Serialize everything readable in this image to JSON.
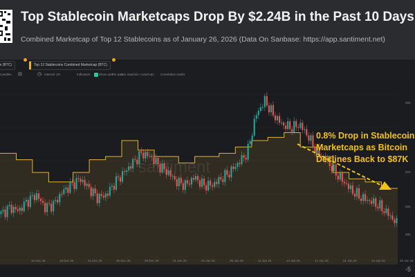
{
  "header": {
    "title": "Top Stablecoin Marketcaps Drop By $2.24B in the Past 10 Days",
    "subtitle": "Combined Marketcap of Top 12 Stablecoins as of January 26, 2026 (Data On Sanbase: https://app.santiment.net)"
  },
  "toolbar": {
    "tab_btc": "ce (BTC)",
    "tab_stablecoins": "Top 12 Stablecoins Combined Marketcap (BTC)",
    "candles": "Candles",
    "interval": "Interval: 2H",
    "indicators": "Indicators",
    "show_axis": "Show axis",
    "pin_axis": "Pin axis",
    "axis_max_min": "Axis max/min: Auto/Auto",
    "correlation": "Correlation matrix"
  },
  "chart": {
    "watermark": "santiment",
    "annotation": [
      "0.8% Drop in Stablecoin",
      "Marketcaps as Bitcoin",
      "Declines Back to $87K"
    ],
    "footer_label": "-5",
    "colors": {
      "up": "#26a69a",
      "down": "#ef5350",
      "stablecoin_line": "#e3b33b",
      "annotation": "#f2c21a"
    }
  },
  "x_ticks": [
    "",
    "15 Dec 25",
    "18 Dec 25",
    "21 Dec 25",
    "25 Dec 25",
    "29 Dec 25",
    "01 Jan 26",
    "04 Jan 26",
    "08 Jan 26",
    "11 Jan 26",
    "14 Jan 26",
    "17 Jan 26",
    "21 Jan 26",
    "24 Jan 26",
    "26 Jan 26"
  ],
  "y_ticks": [
    "96K",
    "94K",
    "92K",
    "90K",
    "88K"
  ],
  "chart_data": {
    "type": "line",
    "title": "Top Stablecoin Marketcaps Drop By $2.24B in the Past 10 Days",
    "x_range": [
      "Dec 2025",
      "26 Jan 2026"
    ],
    "series": [
      {
        "name": "Top 12 Stablecoins Combined Marketcap (BTC)",
        "style": "stepped area",
        "values": [
          0.62,
          0.62,
          0.58,
          0.58,
          0.5,
          0.5,
          0.44,
          0.44,
          0.44,
          0.5,
          0.5,
          0.58,
          0.58,
          0.6,
          0.6,
          0.7,
          0.7,
          0.64,
          0.64,
          0.6,
          0.6,
          0.6,
          0.56,
          0.56,
          0.6,
          0.6,
          0.6,
          0.62,
          0.62,
          0.66,
          0.66,
          0.7,
          0.7,
          0.72,
          0.72,
          0.75,
          0.75,
          0.66,
          0.66,
          0.6,
          0.6,
          0.5,
          0.5,
          0.46,
          0.46,
          0.44,
          0.44,
          0.4,
          0.4
        ]
      },
      {
        "name": "Price (BTC)",
        "style": "candles",
        "values": [
          0.24,
          0.28,
          0.26,
          0.32,
          0.36,
          0.28,
          0.3,
          0.38,
          0.42,
          0.46,
          0.4,
          0.34,
          0.36,
          0.44,
          0.5,
          0.56,
          0.62,
          0.6,
          0.54,
          0.5,
          0.44,
          0.42,
          0.47,
          0.42,
          0.42,
          0.46,
          0.5,
          0.56,
          0.62,
          0.86,
          0.95,
          0.86,
          0.8,
          0.78,
          0.8,
          0.72,
          0.62,
          0.58,
          0.5,
          0.44,
          0.38,
          0.34,
          0.32,
          0.29,
          0.24,
          0.18
        ]
      }
    ],
    "annotation": "0.8% Drop in Stablecoin Marketcaps as Bitcoin Declines Back to $87K"
  }
}
